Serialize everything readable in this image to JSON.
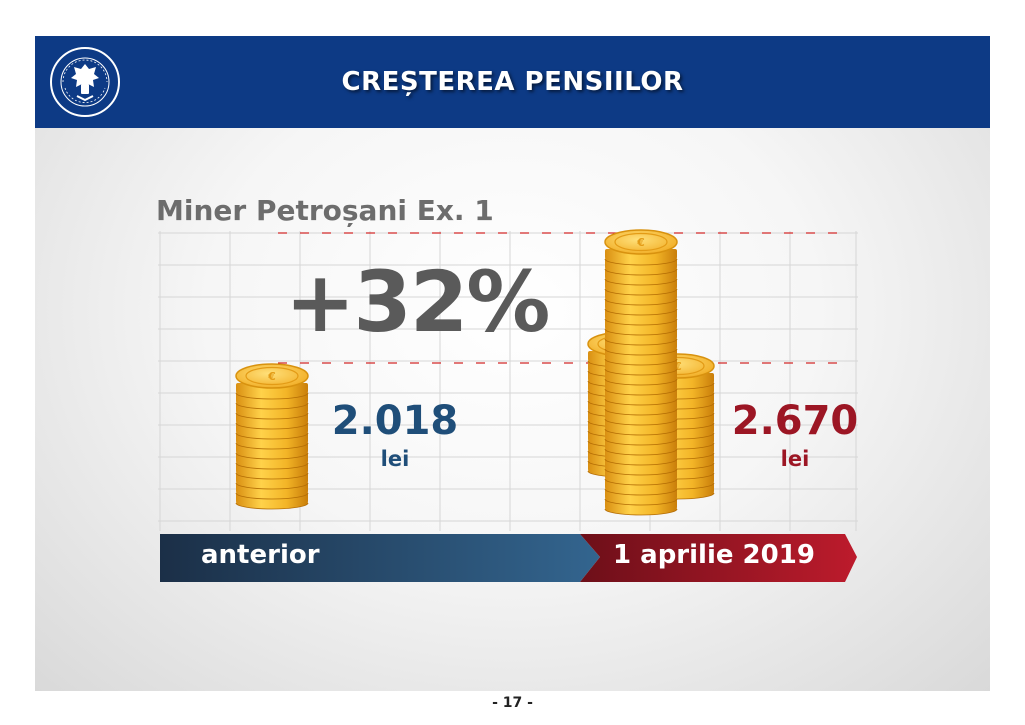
{
  "header": {
    "title": "CREȘTEREA PENSIILOR"
  },
  "logo": {
    "icon": "romanian-government-seal-icon",
    "text": "GUVERNUL ROMÂNIEI"
  },
  "main": {
    "subtitle": "Miner Petroșani Ex. 1",
    "increase": "+32%",
    "before": {
      "value": "2.018",
      "unit": "lei",
      "color": "#1f4e79"
    },
    "after": {
      "value": "2.670",
      "unit": "lei",
      "color": "#9c1624"
    }
  },
  "timeline": {
    "left_label": "anterior",
    "right_label": "1 aprilie 2019"
  },
  "footer": {
    "page": "- 17 -"
  },
  "colors": {
    "header": "#0d3a85",
    "blue": "#1f4e79",
    "red": "#9c1624",
    "gold": "#f3b527"
  }
}
